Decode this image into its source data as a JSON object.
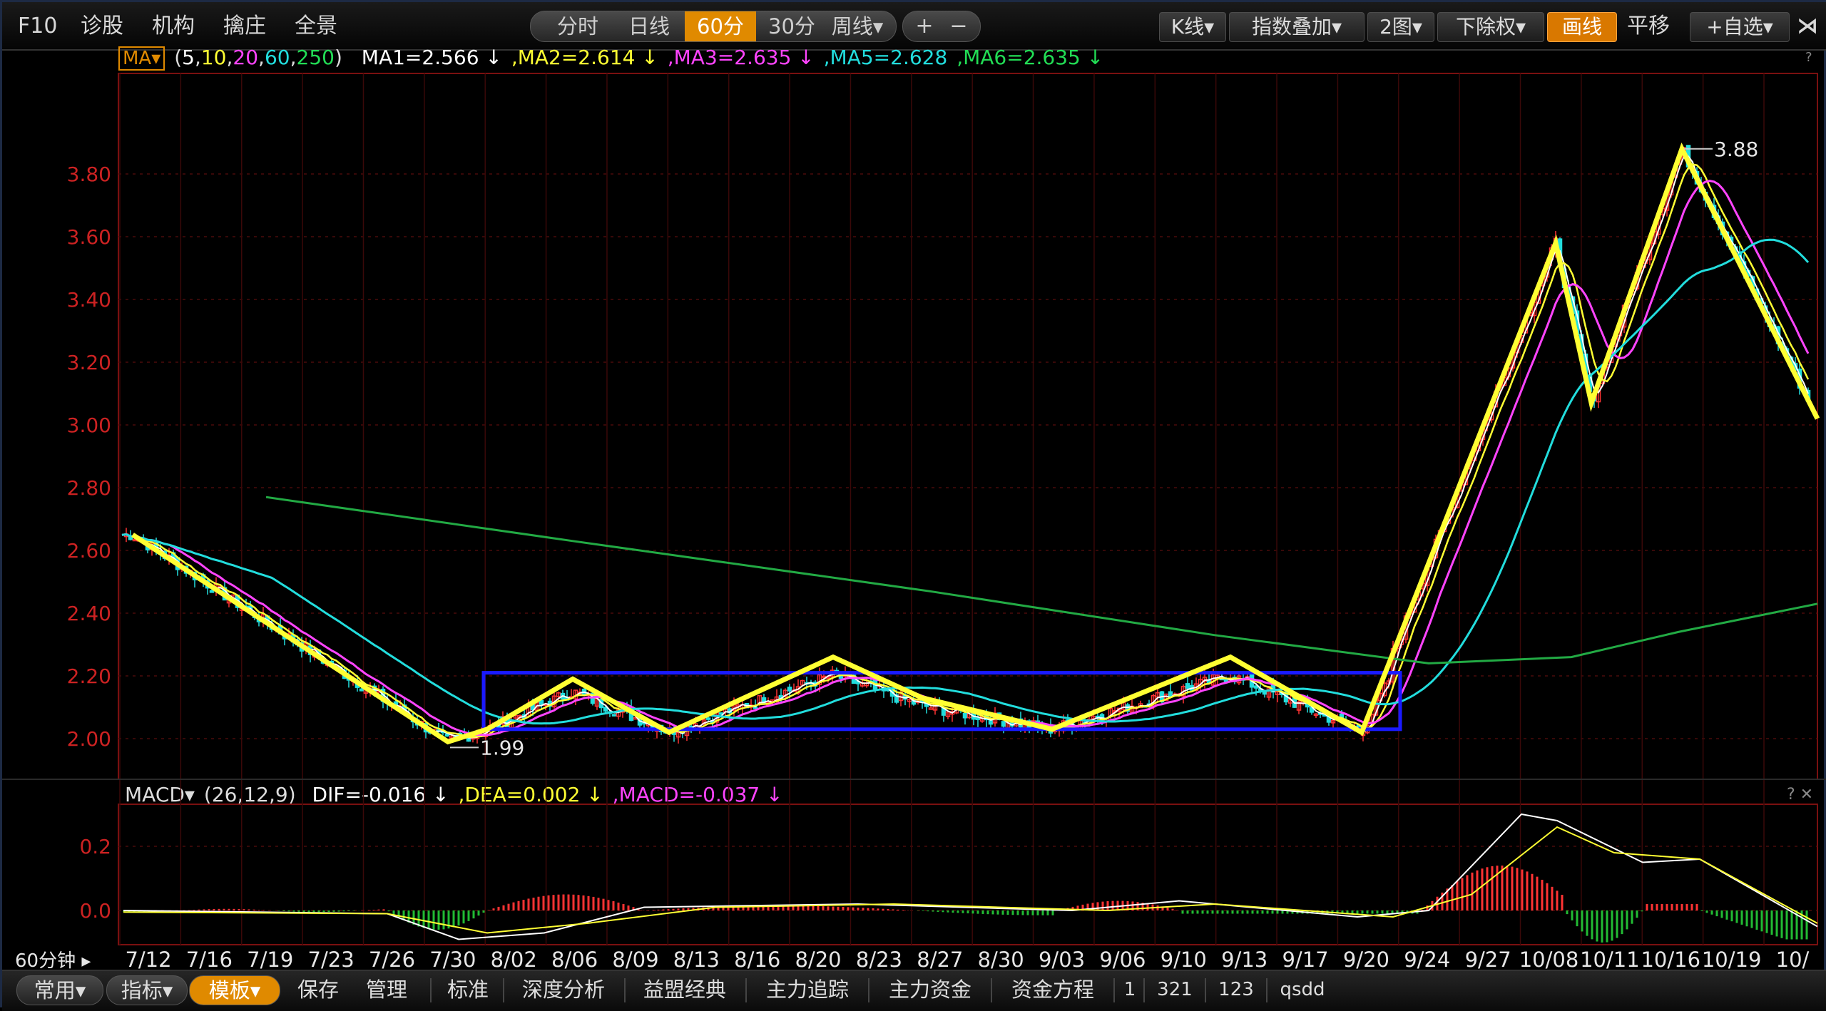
{
  "toolbar": {
    "left_items": [
      "F10",
      "诊股",
      "机构",
      "擒庄",
      "全景"
    ],
    "period_tabs": [
      "分时",
      "日线",
      "60分",
      "30分",
      "周线▾"
    ],
    "active_period": "60分",
    "zoom_buttons": [
      "+",
      "−"
    ],
    "right_buttons": [
      "K线▾",
      "指数叠加▾",
      "2图▾",
      "下除权▾",
      "画线",
      "平移",
      "+自选▾",
      "⋊"
    ]
  },
  "ma_header": {
    "selector": "MA▾",
    "params_open": "(",
    "params": [
      "5",
      "10",
      "20",
      "60",
      "250"
    ],
    "params_close": ")",
    "values": [
      {
        "text": "MA1=2.566 ↓",
        "color": "#ffffff"
      },
      {
        "text": ",MA2=2.614 ↓",
        "color": "#ffff33"
      },
      {
        "text": ",MA3=2.635 ↓",
        "color": "#ff44ff"
      },
      {
        "text": ",MA5=2.628",
        "color": "#22dddd"
      },
      {
        "text": ",MA6=2.635 ↓",
        "color": "#22dd55"
      }
    ],
    "corner": "?"
  },
  "macd_header": {
    "label": "MACD▾",
    "params": "(26,12,9)",
    "values": [
      {
        "text": "DIF=-0.016 ↓",
        "color": "#ffffff"
      },
      {
        "text": ",DEA=0.002 ↓",
        "color": "#ffff33"
      },
      {
        "text": ",MACD=-0.037 ↓",
        "color": "#ff44ff"
      }
    ],
    "corner": "? ✕"
  },
  "chart_data": {
    "type": "candlestick",
    "price_ticks": [
      "3.80",
      "3.60",
      "3.40",
      "3.20",
      "3.00",
      "2.80",
      "2.60",
      "2.40",
      "2.20",
      "2.00"
    ],
    "price_tick_values": [
      3.8,
      3.6,
      3.4,
      3.2,
      3.0,
      2.8,
      2.6,
      2.4,
      2.2,
      2.0
    ],
    "macd_ticks": [
      "0.2",
      "0.0"
    ],
    "macd_tick_values": [
      0.2,
      0.0
    ],
    "x_labels": [
      "7/12",
      "7/16",
      "7/19",
      "7/23",
      "7/26",
      "7/30",
      "8/02",
      "8/06",
      "8/09",
      "8/13",
      "8/16",
      "8/20",
      "8/23",
      "8/27",
      "8/30",
      "9/03",
      "9/06",
      "9/10",
      "9/13",
      "9/17",
      "9/20",
      "9/24",
      "9/27",
      "10/08",
      "10/11",
      "10/16",
      "10/19",
      "10/"
    ],
    "period_label": "60分钟",
    "annotations": [
      {
        "text": "3.88",
        "price": 3.88
      },
      {
        "text": "1.99",
        "price": 1.99
      }
    ],
    "zigzag_prices": [
      2.65,
      1.99,
      2.03,
      2.19,
      2.02,
      2.26,
      2.13,
      2.03,
      2.26,
      2.02,
      3.58,
      3.07,
      3.88,
      3.02
    ],
    "box_range": [
      2.03,
      2.21
    ],
    "colors": {
      "up": "#ff3333",
      "down": "#22dddd",
      "ma1": "#ffffff",
      "ma2": "#ffff33",
      "ma3": "#ff44ff",
      "ma5": "#22dddd",
      "ma6": "#22aa44",
      "zigzag": "#ffff33",
      "box": "#1a1aff",
      "axis_text": "#cc2222"
    }
  },
  "bottombar": {
    "pills": [
      "常用▾",
      "指标▾",
      "模板▾"
    ],
    "active_pill": "模板▾",
    "items": [
      "保存",
      "管理"
    ],
    "tabs": [
      "标准",
      "深度分析",
      "益盟经典",
      "主力追踪",
      "主力资金",
      "资金方程"
    ],
    "tail": [
      "1",
      "321",
      "123",
      "qsdd"
    ]
  }
}
